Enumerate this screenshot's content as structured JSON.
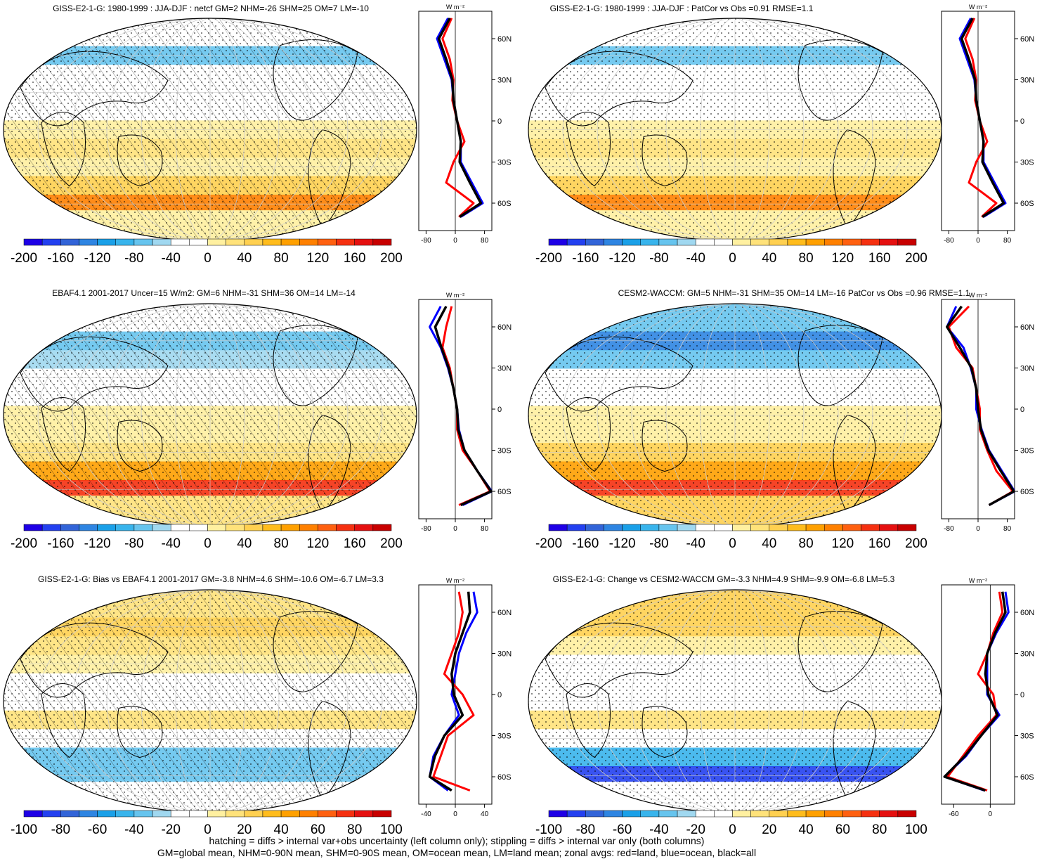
{
  "chart_data": [
    {
      "type": "heatmap",
      "title": "GISS-E2-1-G: 1980-1999 : JJA-DJF : netcf GM=2 NHM=-26 SHM=25 OM=7 LM=-10",
      "colorbar_ticks": [
        "-200",
        "-160",
        "-120",
        "-80",
        "-40",
        "0",
        "40",
        "80",
        "120",
        "160",
        "200"
      ],
      "colorbar_range": [
        -220,
        220
      ],
      "hatching": true,
      "zonal": {
        "unit": "W m⁻²",
        "lat_ticks": [
          "60N",
          "30N",
          "0",
          "30S",
          "60S"
        ],
        "x_ticks": [
          "-80",
          "0",
          "80"
        ],
        "xlim": [
          -100,
          100
        ],
        "lat": [
          75,
          60,
          45,
          30,
          15,
          0,
          -15,
          -30,
          -45,
          -60,
          -70
        ],
        "land": [
          -10,
          -35,
          -15,
          -5,
          -8,
          5,
          25,
          -5,
          -25,
          50,
          10
        ],
        "ocean": [
          -20,
          -50,
          -30,
          -10,
          -5,
          5,
          15,
          15,
          45,
          75,
          15
        ],
        "all": [
          -15,
          -45,
          -25,
          -8,
          -5,
          5,
          15,
          12,
          40,
          70,
          12
        ]
      }
    },
    {
      "type": "heatmap",
      "title": "GISS-E2-1-G: 1980-1999 : JJA-DJF : PatCor vs Obs =0.91 RMSE=1.1",
      "colorbar_ticks": [
        "-200",
        "-160",
        "-120",
        "-80",
        "-40",
        "0",
        "40",
        "80",
        "120",
        "160",
        "200"
      ],
      "colorbar_range": [
        -220,
        220
      ],
      "hatching": false,
      "zonal": {
        "unit": "W m⁻²",
        "lat_ticks": [
          "60N",
          "30N",
          "0",
          "30S",
          "60S"
        ],
        "x_ticks": [
          "-80",
          "0",
          "80"
        ],
        "xlim": [
          -100,
          100
        ],
        "lat": [
          75,
          60,
          45,
          30,
          15,
          0,
          -15,
          -30,
          -45,
          -60,
          -70
        ],
        "land": [
          -10,
          -35,
          -15,
          -5,
          -8,
          5,
          25,
          -5,
          -25,
          50,
          10
        ],
        "ocean": [
          -20,
          -50,
          -30,
          -10,
          -5,
          5,
          15,
          15,
          45,
          75,
          15
        ],
        "all": [
          -15,
          -45,
          -25,
          -8,
          -5,
          5,
          15,
          12,
          40,
          70,
          12
        ]
      }
    },
    {
      "type": "heatmap",
      "title": "EBAF4.1 2001-2017 Uncer=15 W/m2: GM=6 NHM=-31 SHM=36 OM=14 LM=-14",
      "colorbar_ticks": [
        "-200",
        "-160",
        "-120",
        "-80",
        "-40",
        "0",
        "40",
        "80",
        "120",
        "160",
        "200"
      ],
      "colorbar_range": [
        -220,
        220
      ],
      "hatching": true,
      "zonal": {
        "unit": "W m⁻²",
        "lat_ticks": [
          "60N",
          "30N",
          "0",
          "30S",
          "60S"
        ],
        "x_ticks": [
          "-80",
          "0",
          "80"
        ],
        "xlim": [
          -100,
          100
        ],
        "lat": [
          75,
          60,
          45,
          30,
          15,
          0,
          -15,
          -30,
          -45,
          -60,
          -70
        ],
        "land": [
          -10,
          -25,
          -35,
          -15,
          -5,
          5,
          5,
          20,
          60,
          95,
          10
        ],
        "ocean": [
          -40,
          -70,
          -40,
          -20,
          -5,
          5,
          10,
          25,
          60,
          100,
          20
        ],
        "all": [
          -25,
          -55,
          -38,
          -18,
          -5,
          5,
          8,
          25,
          60,
          98,
          15
        ]
      }
    },
    {
      "type": "heatmap",
      "title": "CESM2-WACCM: GM=5 NHM=-31 SHM=35 OM=14 LM=-16 PatCor vs Obs =0.96 RMSE=1.1",
      "colorbar_ticks": [
        "-200",
        "-160",
        "-120",
        "-80",
        "-40",
        "0",
        "40",
        "80",
        "120",
        "160",
        "200"
      ],
      "colorbar_range": [
        -220,
        220
      ],
      "hatching": false,
      "zonal": {
        "unit": "W m⁻²",
        "lat_ticks": [
          "60N",
          "30N",
          "0",
          "30S",
          "60S"
        ],
        "x_ticks": [
          "-80",
          "0",
          "80"
        ],
        "xlim": [
          -100,
          100
        ],
        "lat": [
          75,
          60,
          45,
          30,
          15,
          0,
          -15,
          -30,
          -45,
          -60,
          -70
        ],
        "land": [
          -25,
          -80,
          -60,
          -15,
          -5,
          5,
          5,
          25,
          50,
          95,
          30
        ],
        "ocean": [
          -60,
          -85,
          -40,
          -20,
          -5,
          -5,
          10,
          30,
          65,
          100,
          30
        ],
        "all": [
          -45,
          -85,
          -50,
          -18,
          -5,
          0,
          8,
          28,
          62,
          98,
          30
        ]
      }
    },
    {
      "type": "heatmap",
      "title": "GISS-E2-1-G: Bias vs EBAF4.1 2001-2017 GM=-3.8 NHM=4.6 SHM=-10.6 OM=-6.7 LM=3.3",
      "colorbar_ticks": [
        "-100",
        "-80",
        "-60",
        "-40",
        "-20",
        "0",
        "20",
        "40",
        "60",
        "80",
        "100"
      ],
      "colorbar_range": [
        -110,
        110
      ],
      "hatching": true,
      "zonal": {
        "unit": "W m⁻²",
        "lat_ticks": [
          "60N",
          "30N",
          "0",
          "30S",
          "60S"
        ],
        "x_ticks": [
          "-40",
          "0",
          "40"
        ],
        "xlim": [
          -50,
          50
        ],
        "lat": [
          75,
          60,
          45,
          30,
          15,
          0,
          -15,
          -30,
          -45,
          -60,
          -70
        ],
        "land": [
          5,
          10,
          5,
          -5,
          -15,
          10,
          25,
          -10,
          -20,
          -30,
          20
        ],
        "ocean": [
          25,
          30,
          15,
          5,
          0,
          -5,
          5,
          -15,
          -30,
          -35,
          -10
        ],
        "all": [
          18,
          20,
          10,
          0,
          -5,
          -2,
          10,
          -15,
          -28,
          -35,
          -5
        ]
      }
    },
    {
      "type": "heatmap",
      "title": "GISS-E2-1-G: Change vs CESM2-WACCM GM=-3.3 NHM=4.9 SHM=-9.9 OM=-6.8 LM=5.3",
      "colorbar_ticks": [
        "-100",
        "-80",
        "-60",
        "-40",
        "-20",
        "0",
        "20",
        "40",
        "60",
        "80",
        "100"
      ],
      "colorbar_range": [
        -110,
        110
      ],
      "hatching": false,
      "zonal": {
        "unit": "W m⁻²",
        "lat_ticks": [
          "60N",
          "30N",
          "0",
          "30S",
          "60S"
        ],
        "x_ticks": [
          "-60",
          "0"
        ],
        "xlim": [
          -80,
          40
        ],
        "lat": [
          75,
          60,
          45,
          30,
          15,
          0,
          -15,
          -30,
          -45,
          -60,
          -70
        ],
        "land": [
          15,
          20,
          5,
          -5,
          -20,
          5,
          10,
          -20,
          -45,
          -70,
          -5
        ],
        "ocean": [
          25,
          30,
          10,
          -5,
          -5,
          -5,
          15,
          -15,
          -40,
          -75,
          -10
        ],
        "all": [
          20,
          25,
          8,
          -5,
          -8,
          -3,
          12,
          -15,
          -42,
          -75,
          -8
        ]
      }
    }
  ],
  "colors": {
    "land": "#ff0000",
    "ocean": "#0000ff",
    "all": "#000000",
    "colorbar": [
      "#1e00e6",
      "#2340f0",
      "#3264d8",
      "#2e85e2",
      "#1aa0e8",
      "#38b4ec",
      "#66c4ee",
      "#a0d8f0",
      "#ffffff",
      "#ffffff",
      "#fff0a0",
      "#ffe27a",
      "#ffd050",
      "#ffbc1c",
      "#ffa000",
      "#ff8000",
      "#ff6010",
      "#f53010",
      "#e51010",
      "#c80000"
    ]
  },
  "footnotes": {
    "line1": "hatching = diffs > internal var+obs uncertainty (left column only); stippling = diffs > internal var only (both columns)",
    "line2": "GM=global mean, NHM=0-90N mean, SHM=0-90S mean, OM=ocean mean, LM=land mean; zonal avgs: red=land, blue=ocean, black=all"
  }
}
